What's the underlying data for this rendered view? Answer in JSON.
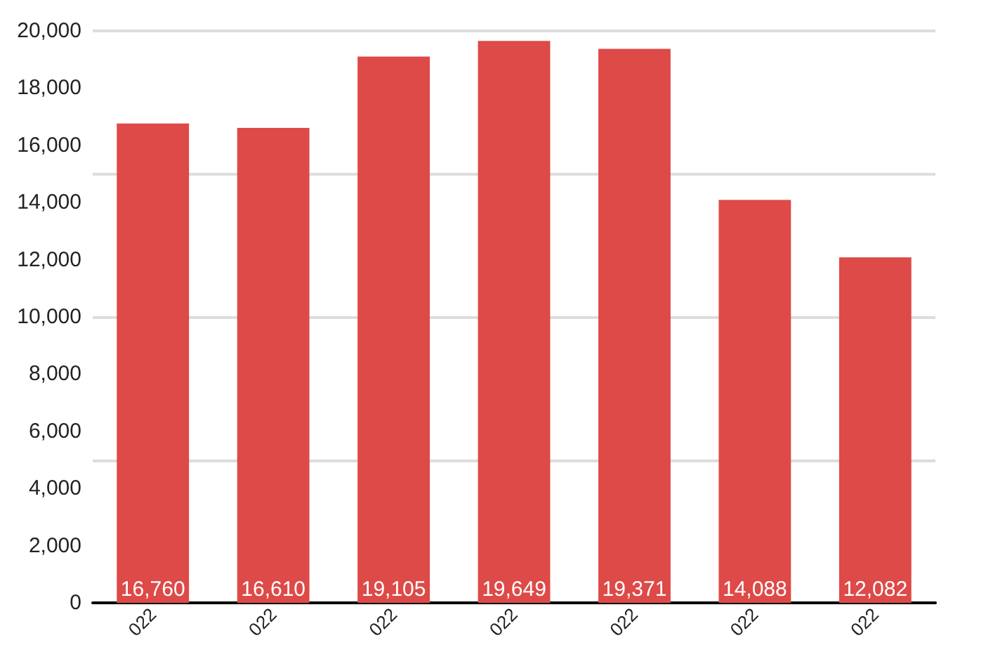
{
  "chart_data": {
    "type": "bar",
    "categories": [
      "022",
      "022",
      "022",
      "022",
      "022",
      "022",
      "022"
    ],
    "values": [
      16760,
      16610,
      19105,
      19649,
      19371,
      14088,
      12082
    ],
    "value_labels": [
      "16,760",
      "16,610",
      "19,105",
      "19,649",
      "19,371",
      "14,088",
      "12,082"
    ],
    "color": "#dd4a48",
    "ylim": [
      0,
      20000
    ],
    "yticks": [
      0,
      {
        "value": 2000,
        "label": "2,000"
      },
      {
        "value": 4000,
        "label": "4,000"
      },
      {
        "value": 6000,
        "label": "6,000"
      },
      {
        "value": 8000,
        "label": "8,000"
      },
      {
        "value": 10000,
        "label": "10,000"
      },
      {
        "value": 12000,
        "label": "12,000"
      },
      {
        "value": 14000,
        "label": "14,000"
      },
      {
        "value": 16000,
        "label": "16,000"
      },
      {
        "value": 18000,
        "label": "18,000"
      },
      {
        "value": 20000,
        "label": "20,000"
      }
    ],
    "grid": "y"
  }
}
